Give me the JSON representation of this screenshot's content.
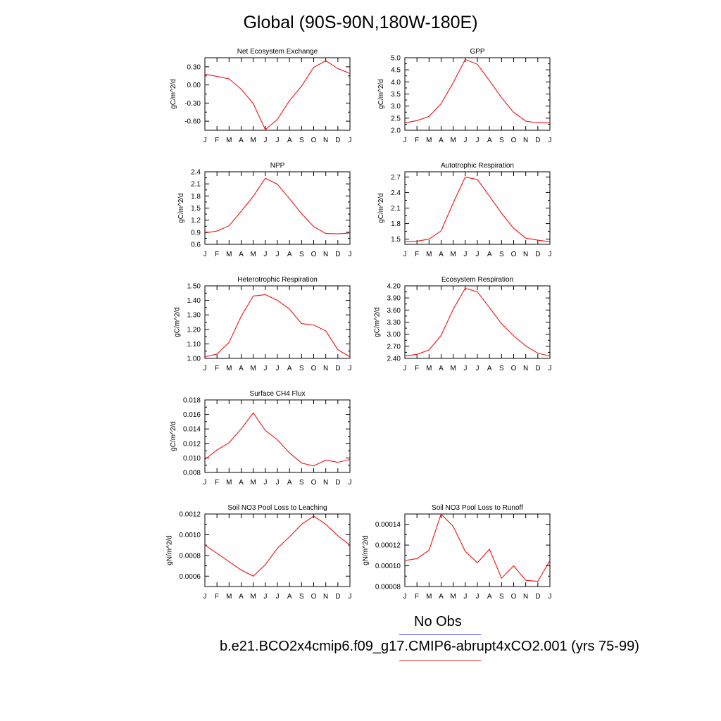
{
  "title": "Global (90S-90N,180W-180E)",
  "month_labels": [
    "J",
    "F",
    "M",
    "A",
    "M",
    "J",
    "J",
    "A",
    "S",
    "O",
    "N",
    "D",
    "J"
  ],
  "legend": [
    {
      "label": "No Obs",
      "color": "#5555ee"
    },
    {
      "label": "b.e21.BCO2x4cmip6.f09_g17.CMIP6-abrupt4xCO2.001 (yrs 75-99)",
      "color": "#ee3333"
    }
  ],
  "chart_data": [
    {
      "type": "line",
      "title": "Net Ecosystem Exchange",
      "ylabel": "gC/m^2/d",
      "ylim": [
        -0.75,
        0.45
      ],
      "yticks": [
        0.3,
        0.0,
        -0.3,
        -0.6
      ],
      "ytick_labels": [
        "0.30",
        "0.00",
        "-0.30",
        "-0.60"
      ],
      "series": [
        {
          "values": [
            0.18,
            0.14,
            0.1,
            -0.07,
            -0.31,
            -0.74,
            -0.57,
            -0.26,
            -0.02,
            0.29,
            0.4,
            0.27,
            0.19
          ]
        }
      ]
    },
    {
      "type": "line",
      "title": "GPP",
      "ylabel": "gC/m^2/d",
      "ylim": [
        2.0,
        5.0
      ],
      "yticks": [
        5.0,
        4.5,
        4.0,
        3.5,
        3.0,
        2.5,
        2.0
      ],
      "ytick_labels": [
        "5.0",
        "4.5",
        "4.0",
        "3.5",
        "3.0",
        "2.5",
        "2.0"
      ],
      "series": [
        {
          "values": [
            2.31,
            2.4,
            2.57,
            3.1,
            3.97,
            4.93,
            4.73,
            4.05,
            3.35,
            2.74,
            2.38,
            2.31,
            2.31
          ]
        }
      ]
    },
    {
      "type": "line",
      "title": "NPP",
      "ylabel": "gC/m^2/d",
      "ylim": [
        0.6,
        2.4
      ],
      "yticks": [
        2.4,
        2.1,
        1.8,
        1.5,
        1.2,
        0.9,
        0.6
      ],
      "ytick_labels": [
        "2.4",
        "2.1",
        "1.8",
        "1.5",
        "1.2",
        "0.9",
        "0.6"
      ],
      "series": [
        {
          "values": [
            0.88,
            0.93,
            1.06,
            1.42,
            1.79,
            2.24,
            2.09,
            1.73,
            1.36,
            1.04,
            0.87,
            0.86,
            0.88
          ]
        }
      ]
    },
    {
      "type": "line",
      "title": "Autotrophic Respiration",
      "ylabel": "gC/m^2/d",
      "ylim": [
        1.4,
        2.8
      ],
      "yticks": [
        2.7,
        2.4,
        2.1,
        1.8,
        1.5
      ],
      "ytick_labels": [
        "2.7",
        "2.4",
        "2.1",
        "1.8",
        "1.5"
      ],
      "series": [
        {
          "values": [
            1.45,
            1.46,
            1.5,
            1.66,
            2.2,
            2.7,
            2.65,
            2.33,
            2.0,
            1.71,
            1.52,
            1.48,
            1.45
          ]
        }
      ]
    },
    {
      "type": "line",
      "title": "Heterotrophic Respiration",
      "ylabel": "gC/m^2/d",
      "ylim": [
        1.0,
        1.5
      ],
      "yticks": [
        1.5,
        1.4,
        1.3,
        1.2,
        1.1,
        1.0
      ],
      "ytick_labels": [
        "1.50",
        "1.40",
        "1.30",
        "1.20",
        "1.10",
        "1.00"
      ],
      "series": [
        {
          "values": [
            1.01,
            1.03,
            1.11,
            1.29,
            1.43,
            1.44,
            1.4,
            1.34,
            1.24,
            1.23,
            1.19,
            1.06,
            1.01
          ]
        }
      ]
    },
    {
      "type": "line",
      "title": "Ecosystem Respiration",
      "ylabel": "gC/m^2/d",
      "ylim": [
        2.4,
        4.2
      ],
      "yticks": [
        4.2,
        3.9,
        3.6,
        3.3,
        3.0,
        2.7,
        2.4
      ],
      "ytick_labels": [
        "4.20",
        "3.90",
        "3.60",
        "3.30",
        "3.00",
        "2.70",
        "2.40"
      ],
      "series": [
        {
          "values": [
            2.46,
            2.5,
            2.61,
            2.97,
            3.62,
            4.14,
            4.05,
            3.66,
            3.26,
            2.96,
            2.71,
            2.53,
            2.46
          ]
        }
      ]
    },
    {
      "type": "line",
      "title": "Surface CH4 Flux",
      "ylabel": "gC/m^2/d",
      "ylim": [
        0.008,
        0.018
      ],
      "yticks": [
        0.018,
        0.016,
        0.014,
        0.012,
        0.01,
        0.008
      ],
      "ytick_labels": [
        "0.018",
        "0.016",
        "0.014",
        "0.012",
        "0.010",
        "0.008"
      ],
      "series": [
        {
          "values": [
            0.0098,
            0.0111,
            0.0121,
            0.014,
            0.0162,
            0.0138,
            0.0125,
            0.0107,
            0.0093,
            0.0089,
            0.0097,
            0.0094,
            0.0098
          ]
        }
      ]
    },
    {
      "type": "line",
      "title": "Soil NO3 Pool Loss to Leaching",
      "ylabel": "gN/m^2/d",
      "ylim": [
        0.0005,
        0.0012
      ],
      "yticks": [
        0.0012,
        0.001,
        0.0008,
        0.0006
      ],
      "ytick_labels": [
        "0.0012",
        "0.0010",
        "0.0008",
        "0.0006"
      ],
      "series": [
        {
          "values": [
            0.0009,
            0.00082,
            0.00074,
            0.00066,
            0.0006,
            0.00071,
            0.00087,
            0.00098,
            0.0011,
            0.00118,
            0.0011,
            0.00099,
            0.0009
          ]
        }
      ]
    },
    {
      "type": "line",
      "title": "Soil NO3 Pool Loss to Runoff",
      "ylabel": "gN/m^2/d",
      "ylim": [
        8e-05,
        0.00015
      ],
      "yticks": [
        0.00014,
        0.00012,
        0.0001,
        8e-05
      ],
      "ytick_labels": [
        "0.00014",
        "0.00012",
        "0.00010",
        "0.00008"
      ],
      "series": [
        {
          "values": [
            0.000105,
            0.000107,
            0.000115,
            0.00015,
            0.000138,
            0.000114,
            0.000103,
            0.000116,
            8.8e-05,
            0.0001,
            8.6e-05,
            8.5e-05,
            0.000105
          ]
        }
      ]
    }
  ]
}
